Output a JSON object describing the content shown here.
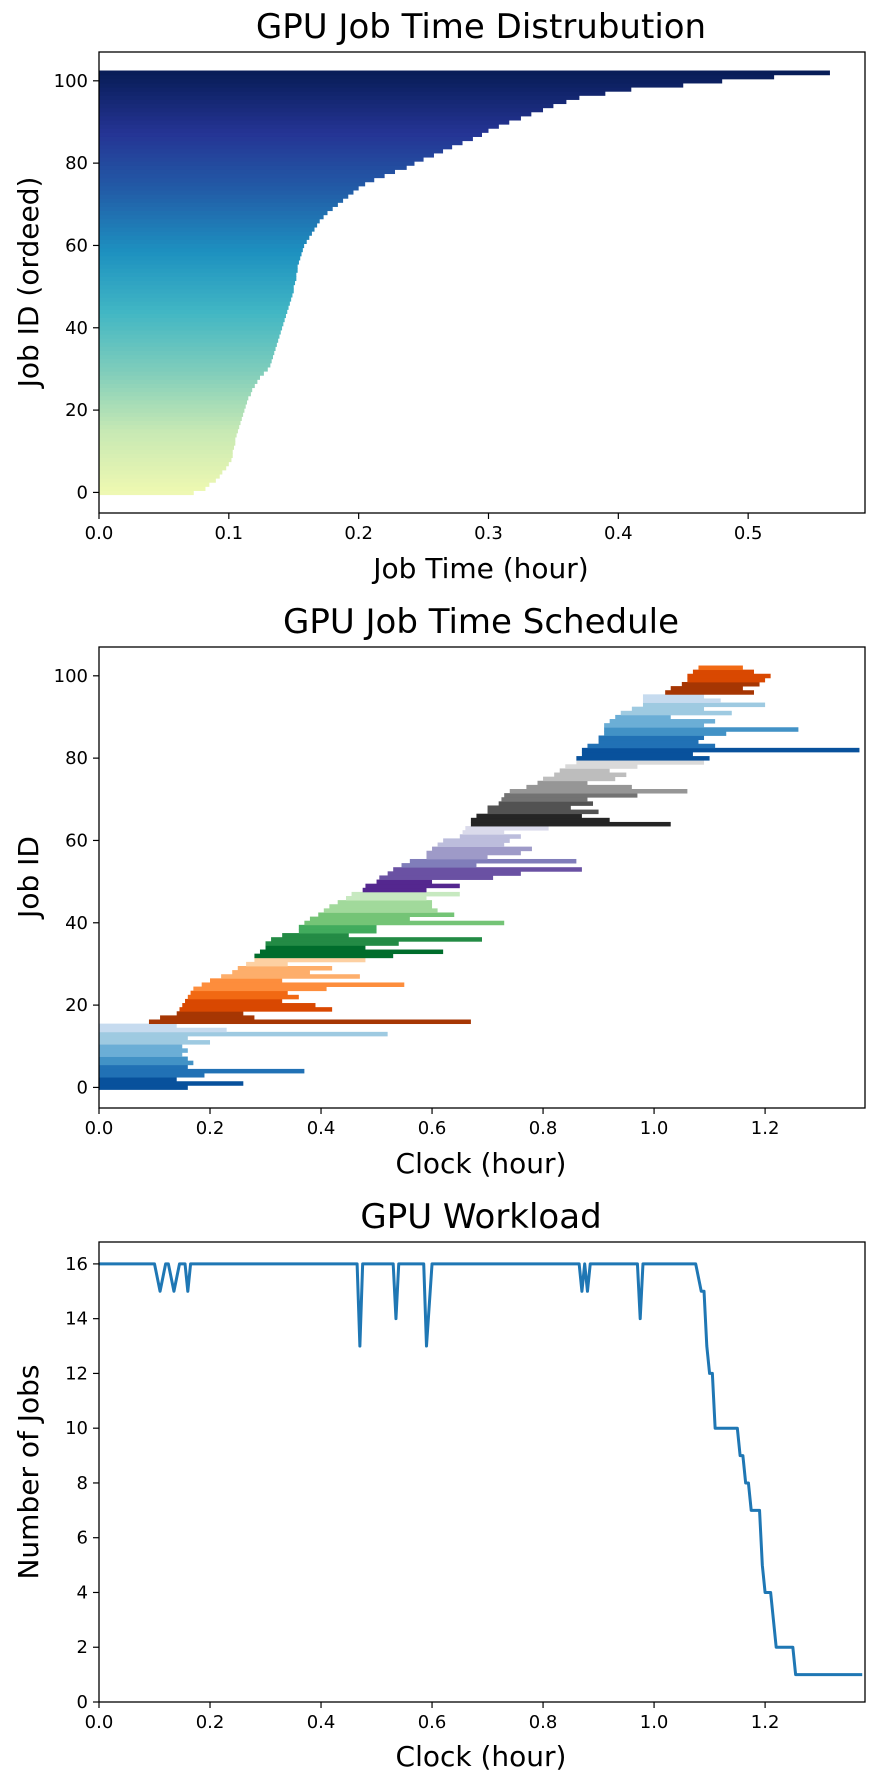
{
  "chart_data": [
    {
      "type": "bar",
      "orientation": "horizontal",
      "title": "GPU Job Time Distrubution",
      "xlabel": "Job Time (hour)",
      "ylabel": "Job ID (ordeed)",
      "xlim": [
        0,
        0.59
      ],
      "ylim": [
        -5,
        107
      ],
      "xticks": [
        "0.0",
        "0.1",
        "0.2",
        "0.3",
        "0.4",
        "0.5"
      ],
      "yticks": [
        "0",
        "20",
        "40",
        "60",
        "80",
        "100"
      ],
      "colormap": "YlGnBu",
      "color_low": "#edf8b1",
      "color_high": "#081d58",
      "grid": false,
      "note": "103 jobs sorted by job time",
      "job_times": [
        0.073,
        0.082,
        0.085,
        0.09,
        0.093,
        0.095,
        0.098,
        0.1,
        0.102,
        0.103,
        0.103,
        0.104,
        0.105,
        0.105,
        0.106,
        0.107,
        0.108,
        0.109,
        0.11,
        0.111,
        0.112,
        0.113,
        0.114,
        0.115,
        0.117,
        0.118,
        0.12,
        0.122,
        0.124,
        0.127,
        0.13,
        0.132,
        0.133,
        0.134,
        0.135,
        0.136,
        0.137,
        0.138,
        0.139,
        0.14,
        0.141,
        0.142,
        0.143,
        0.144,
        0.145,
        0.146,
        0.147,
        0.148,
        0.149,
        0.15,
        0.15,
        0.151,
        0.152,
        0.152,
        0.153,
        0.153,
        0.154,
        0.155,
        0.156,
        0.157,
        0.158,
        0.16,
        0.162,
        0.164,
        0.166,
        0.168,
        0.17,
        0.173,
        0.176,
        0.18,
        0.184,
        0.188,
        0.192,
        0.196,
        0.2,
        0.205,
        0.212,
        0.22,
        0.228,
        0.237,
        0.243,
        0.25,
        0.258,
        0.265,
        0.272,
        0.28,
        0.288,
        0.295,
        0.3,
        0.308,
        0.316,
        0.325,
        0.333,
        0.342,
        0.35,
        0.36,
        0.37,
        0.39,
        0.41,
        0.45,
        0.48,
        0.52,
        0.563
      ]
    },
    {
      "type": "bar",
      "orientation": "horizontal-gantt",
      "title": "GPU Job Time Schedule",
      "xlabel": "Clock (hour)",
      "ylabel": "Job ID",
      "xlim": [
        0,
        1.38
      ],
      "ylim": [
        -5,
        107
      ],
      "xticks": [
        "0.0",
        "0.2",
        "0.4",
        "0.6",
        "0.8",
        "1.0",
        "1.2"
      ],
      "yticks": [
        "0",
        "20",
        "40",
        "60",
        "80",
        "100"
      ],
      "grid": false,
      "note": "103 jobs, start/end clock times in hours, coloured in groups of 16 (Blues, Oranges, Greens, Purples, Greys, Blues, Oranges)",
      "starts": [
        0,
        0,
        0,
        0,
        0,
        0,
        0,
        0,
        0,
        0,
        0,
        0,
        0,
        0,
        0,
        0,
        0.09,
        0.11,
        0.14,
        0.145,
        0.15,
        0.155,
        0.16,
        0.165,
        0.17,
        0.185,
        0.2,
        0.22,
        0.24,
        0.25,
        0.265,
        0.28,
        0.28,
        0.29,
        0.3,
        0.3,
        0.31,
        0.33,
        0.36,
        0.36,
        0.37,
        0.38,
        0.395,
        0.405,
        0.415,
        0.43,
        0.445,
        0.455,
        0.475,
        0.48,
        0.5,
        0.505,
        0.52,
        0.53,
        0.545,
        0.56,
        0.59,
        0.59,
        0.6,
        0.61,
        0.62,
        0.65,
        0.655,
        0.66,
        0.67,
        0.67,
        0.68,
        0.7,
        0.7,
        0.72,
        0.725,
        0.73,
        0.74,
        0.77,
        0.79,
        0.8,
        0.82,
        0.83,
        0.84,
        0.86,
        0.86,
        0.87,
        0.87,
        0.88,
        0.9,
        0.9,
        0.91,
        0.91,
        0.91,
        0.92,
        0.93,
        0.94,
        0.96,
        0.98,
        0.98,
        0.98,
        1.02,
        1.03,
        1.05,
        1.06,
        1.06,
        1.07,
        1.08
      ],
      "ends": [
        0.16,
        0.26,
        0.14,
        0.19,
        0.37,
        0.16,
        0.17,
        0.16,
        0.15,
        0.16,
        0.15,
        0.2,
        0.16,
        0.52,
        0.23,
        0.14,
        0.67,
        0.28,
        0.26,
        0.42,
        0.39,
        0.33,
        0.36,
        0.34,
        0.41,
        0.55,
        0.33,
        0.47,
        0.38,
        0.42,
        0.34,
        0.48,
        0.53,
        0.62,
        0.48,
        0.54,
        0.69,
        0.45,
        0.5,
        0.5,
        0.73,
        0.56,
        0.64,
        0.61,
        0.6,
        0.6,
        0.59,
        0.65,
        0.59,
        0.65,
        0.6,
        0.71,
        0.76,
        0.87,
        0.68,
        0.86,
        0.7,
        0.76,
        0.78,
        0.73,
        0.74,
        0.76,
        0.73,
        0.81,
        1.03,
        0.92,
        0.87,
        0.9,
        0.85,
        0.89,
        0.88,
        0.97,
        1.06,
        0.96,
        0.88,
        0.93,
        0.95,
        0.92,
        0.97,
        1.09,
        1.1,
        1.07,
        1.37,
        1.11,
        1.08,
        1.09,
        1.13,
        1.26,
        1.09,
        1.11,
        1.03,
        1.14,
        1.09,
        1.2,
        1.12,
        1.09,
        1.18,
        1.16,
        1.19,
        1.2,
        1.21,
        1.18,
        1.16
      ],
      "group_colors": [
        [
          "#08519c",
          "#2171b5",
          "#4292c6",
          "#6baed6",
          "#9ecae1",
          "#c6dbef"
        ],
        [
          "#a63603",
          "#d94801",
          "#f16913",
          "#fd8d3c",
          "#fdae6b",
          "#fdd0a2"
        ],
        [
          "#006d2c",
          "#238b45",
          "#41ab5d",
          "#74c476",
          "#a1d99b",
          "#c7e9c0"
        ],
        [
          "#54278f",
          "#6a51a3",
          "#807dba",
          "#9e9ac8",
          "#bcbddc",
          "#dadaeb"
        ],
        [
          "#252525",
          "#525252",
          "#737373",
          "#969696",
          "#bdbdbd",
          "#d9d9d9"
        ],
        [
          "#08519c",
          "#2171b5",
          "#4292c6",
          "#6baed6",
          "#9ecae1",
          "#c6dbef"
        ],
        [
          "#a63603",
          "#d94801",
          "#f16913",
          "#fd8d3c",
          "#fdae6b",
          "#fdd0a2"
        ]
      ]
    },
    {
      "type": "line",
      "title": "GPU Workload",
      "xlabel": "Clock (hour)",
      "ylabel": "Number of Jobs",
      "xlim": [
        0,
        1.38
      ],
      "ylim": [
        0,
        16.8
      ],
      "xticks": [
        "0.0",
        "0.2",
        "0.4",
        "0.6",
        "0.8",
        "1.0",
        "1.2"
      ],
      "yticks": [
        "0",
        "2",
        "4",
        "6",
        "8",
        "10",
        "12",
        "14",
        "16"
      ],
      "line_color": "#1f77b4",
      "grid": false,
      "points": [
        [
          0,
          16
        ],
        [
          0.1,
          16
        ],
        [
          0.11,
          15
        ],
        [
          0.12,
          16
        ],
        [
          0.125,
          16
        ],
        [
          0.135,
          15
        ],
        [
          0.145,
          16
        ],
        [
          0.155,
          16
        ],
        [
          0.16,
          15
        ],
        [
          0.165,
          16
        ],
        [
          0.465,
          16
        ],
        [
          0.47,
          13
        ],
        [
          0.475,
          16
        ],
        [
          0.53,
          16
        ],
        [
          0.535,
          14
        ],
        [
          0.54,
          16
        ],
        [
          0.585,
          16
        ],
        [
          0.59,
          13
        ],
        [
          0.6,
          16
        ],
        [
          0.865,
          16
        ],
        [
          0.87,
          15
        ],
        [
          0.875,
          16
        ],
        [
          0.88,
          15
        ],
        [
          0.885,
          16
        ],
        [
          0.97,
          16
        ],
        [
          0.975,
          14
        ],
        [
          0.98,
          16
        ],
        [
          1.075,
          16
        ],
        [
          1.085,
          15
        ],
        [
          1.09,
          15
        ],
        [
          1.095,
          13
        ],
        [
          1.1,
          12
        ],
        [
          1.105,
          12
        ],
        [
          1.11,
          10
        ],
        [
          1.15,
          10
        ],
        [
          1.155,
          9
        ],
        [
          1.16,
          9
        ],
        [
          1.165,
          8
        ],
        [
          1.17,
          8
        ],
        [
          1.175,
          7
        ],
        [
          1.19,
          7
        ],
        [
          1.195,
          5
        ],
        [
          1.2,
          4
        ],
        [
          1.21,
          4
        ],
        [
          1.215,
          3
        ],
        [
          1.22,
          2
        ],
        [
          1.25,
          2
        ],
        [
          1.255,
          1
        ],
        [
          1.375,
          1
        ]
      ]
    }
  ]
}
